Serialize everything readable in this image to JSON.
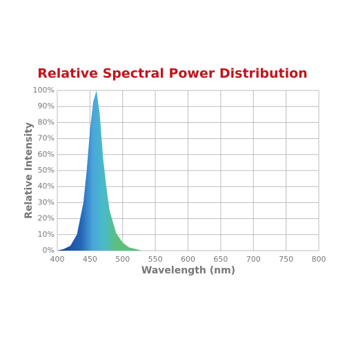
{
  "chart_data": {
    "type": "area",
    "title": "Relative Spectral Power Distribution",
    "xlabel": "Wavelength (nm)",
    "ylabel": "Relative Intensity",
    "x": [
      400,
      410,
      420,
      430,
      440,
      445,
      450,
      455,
      460,
      465,
      470,
      475,
      480,
      490,
      500,
      510,
      520,
      530
    ],
    "values": [
      0,
      1,
      3,
      10,
      30,
      50,
      75,
      93,
      100,
      85,
      58,
      40,
      25,
      11,
      5,
      2,
      1,
      0
    ],
    "colors": [
      "#1b3c8e",
      "#1f52a8",
      "#2466b8",
      "#4aa6dc",
      "#49bcc4",
      "#5dbf7a"
    ],
    "xlim": [
      400,
      800
    ],
    "ylim": [
      0,
      100
    ],
    "xticks": [
      400,
      450,
      500,
      550,
      600,
      650,
      700,
      750,
      800
    ],
    "yticks": [
      {
        "value": 0,
        "label": "0%"
      },
      {
        "value": 10,
        "label": "10%"
      },
      {
        "value": 20,
        "label": "20%"
      },
      {
        "value": 30,
        "label": "30%"
      },
      {
        "value": 40,
        "label": "40%"
      },
      {
        "value": 50,
        "label": "50%"
      },
      {
        "value": 60,
        "label": "60%"
      },
      {
        "value": 70,
        "label": "70%"
      },
      {
        "value": 80,
        "label": "80%"
      },
      {
        "value": 90,
        "label": "90%"
      },
      {
        "value": 100,
        "label": "100%"
      }
    ],
    "grid": true,
    "title_color": "#c1141b"
  }
}
